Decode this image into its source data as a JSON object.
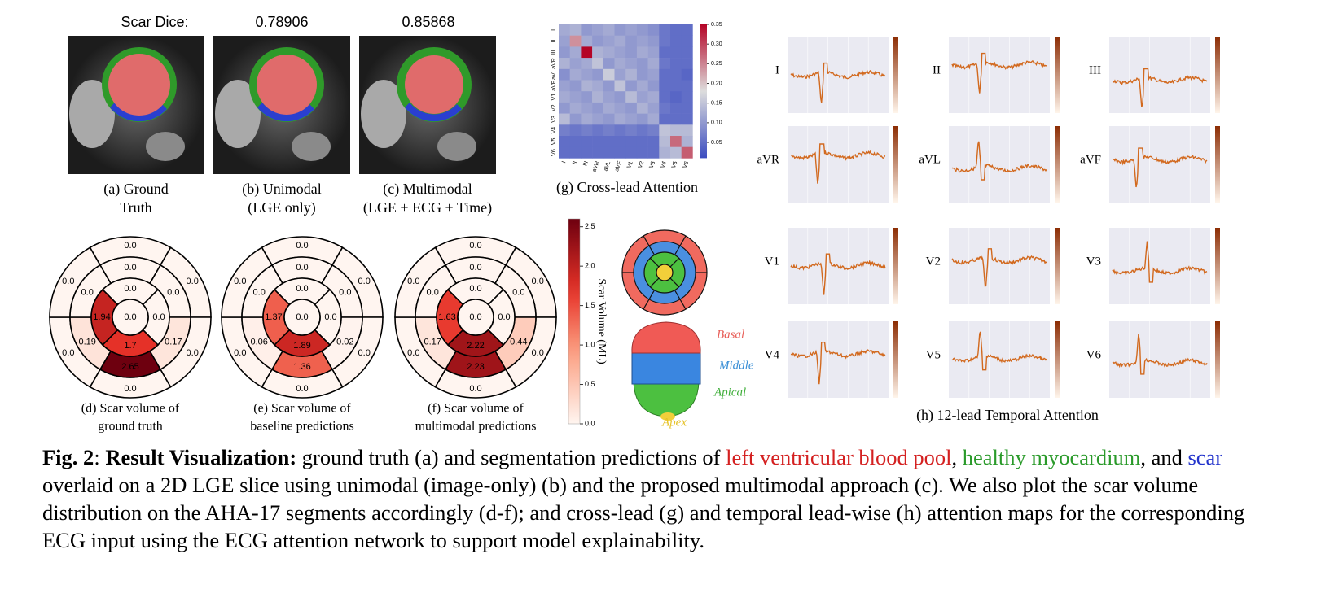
{
  "figure": {
    "scar_dice_label": "Scar Dice:",
    "dice": [
      "0.78906",
      "0.85868"
    ],
    "mri_captions": [
      [
        "(a) Ground",
        "Truth"
      ],
      [
        "(b) Unimodal",
        "(LGE only)"
      ],
      [
        "(c) Multimodal",
        "(LGE + ECG + Time)"
      ]
    ],
    "bullseyes": [
      {
        "caption": [
          "(d) Scar volume of",
          "ground truth"
        ],
        "basal": [
          "0.0",
          "0.0",
          "0.0",
          "0.0",
          "0.0",
          "0.0"
        ],
        "mid": [
          "0.0",
          "0.0",
          "0.17",
          "2.65",
          "0.19",
          "0.0"
        ],
        "apical": [
          "0.0",
          "0.0",
          "1.7",
          "1.94"
        ],
        "apex": "0.0"
      },
      {
        "caption": [
          "(e) Scar volume of",
          "baseline predictions"
        ],
        "basal": [
          "0.0",
          "0.0",
          "0.0",
          "0.0",
          "0.0",
          "0.0"
        ],
        "mid": [
          "0.0",
          "0.0",
          "0.02",
          "1.36",
          "0.06",
          "0.0"
        ],
        "apical": [
          "0.0",
          "0.0",
          "1.89",
          "1.37"
        ],
        "apex": "0.0"
      },
      {
        "caption": [
          "(f) Scar volume of",
          "multimodal predictions"
        ],
        "basal": [
          "0.0",
          "0.0",
          "0.0",
          "0.0",
          "0.0",
          "0.0"
        ],
        "mid": [
          "0.0",
          "0.0",
          "0.44",
          "2.23",
          "0.17",
          "0.0"
        ],
        "apical": [
          "0.0",
          "0.0",
          "2.22",
          "1.63"
        ],
        "apex": "0.0"
      }
    ],
    "colorbar": {
      "label": "Scar Volume (ML)",
      "lim": [
        0,
        2.6
      ],
      "ticks": [
        {
          "value": 0,
          "label": "0.0"
        },
        {
          "value": 0.5,
          "label": "0.5"
        },
        {
          "value": 1,
          "label": "1.0"
        },
        {
          "value": 1.5,
          "label": "1.5"
        },
        {
          "value": 2,
          "label": "2.0"
        },
        {
          "value": 2.5,
          "label": "2.5"
        }
      ]
    },
    "aha_labels": [
      {
        "text": "Basal",
        "color": "#e8605a"
      },
      {
        "text": "Middle",
        "color": "#3a8fd6"
      },
      {
        "text": "Apical",
        "color": "#3fae3a"
      },
      {
        "text": "Apex",
        "color": "#e6c228"
      }
    ],
    "attention": {
      "caption": "(g) Cross-lead Attention",
      "leads": [
        "I",
        "II",
        "III",
        "aVR",
        "aVL",
        "aVF",
        "V1",
        "V2",
        "V3",
        "V4",
        "V5",
        "V6"
      ],
      "lim": [
        0.01,
        0.35
      ],
      "ticks": [
        {
          "value": 0.05,
          "label": "0.05"
        },
        {
          "value": 0.1,
          "label": "0.10"
        },
        {
          "value": 0.15,
          "label": "0.15"
        },
        {
          "value": 0.2,
          "label": "0.20"
        },
        {
          "value": 0.25,
          "label": "0.25"
        },
        {
          "value": 0.3,
          "label": "0.30"
        },
        {
          "value": 0.35,
          "label": "0.35"
        }
      ],
      "values": [
        [
          0.12,
          0.13,
          0.1,
          0.11,
          0.12,
          0.1,
          0.11,
          0.1,
          0.09,
          0.06,
          0.05,
          0.05
        ],
        [
          0.11,
          0.24,
          0.12,
          0.1,
          0.11,
          0.12,
          0.1,
          0.11,
          0.1,
          0.06,
          0.05,
          0.05
        ],
        [
          0.1,
          0.12,
          0.35,
          0.13,
          0.12,
          0.11,
          0.1,
          0.12,
          0.11,
          0.05,
          0.05,
          0.05
        ],
        [
          0.13,
          0.11,
          0.12,
          0.15,
          0.1,
          0.12,
          0.11,
          0.1,
          0.12,
          0.06,
          0.05,
          0.05
        ],
        [
          0.09,
          0.12,
          0.11,
          0.1,
          0.16,
          0.11,
          0.13,
          0.1,
          0.11,
          0.05,
          0.05,
          0.04
        ],
        [
          0.11,
          0.1,
          0.13,
          0.12,
          0.1,
          0.15,
          0.1,
          0.12,
          0.1,
          0.05,
          0.05,
          0.05
        ],
        [
          0.12,
          0.11,
          0.1,
          0.13,
          0.11,
          0.1,
          0.14,
          0.11,
          0.12,
          0.05,
          0.04,
          0.05
        ],
        [
          0.1,
          0.12,
          0.11,
          0.1,
          0.12,
          0.11,
          0.1,
          0.13,
          0.11,
          0.06,
          0.05,
          0.05
        ],
        [
          0.14,
          0.1,
          0.12,
          0.11,
          0.1,
          0.12,
          0.11,
          0.1,
          0.12,
          0.05,
          0.05,
          0.05
        ],
        [
          0.07,
          0.06,
          0.07,
          0.06,
          0.07,
          0.06,
          0.07,
          0.06,
          0.07,
          0.15,
          0.14,
          0.14
        ],
        [
          0.05,
          0.05,
          0.05,
          0.05,
          0.05,
          0.05,
          0.05,
          0.05,
          0.05,
          0.14,
          0.27,
          0.13
        ],
        [
          0.05,
          0.05,
          0.05,
          0.05,
          0.05,
          0.05,
          0.05,
          0.05,
          0.05,
          0.13,
          0.14,
          0.28
        ]
      ]
    },
    "temporal": {
      "caption": "(h) 12-lead Temporal Attention",
      "leads": [
        "I",
        "II",
        "III",
        "aVR",
        "aVL",
        "aVF",
        "V1",
        "V2",
        "V3",
        "V4",
        "V5",
        "V6"
      ]
    },
    "caption": [
      {
        "text": "Fig. 2",
        "bold": true
      },
      {
        "text": ": "
      },
      {
        "text": "Result Visualization:",
        "bold": true
      },
      {
        "text": " ground truth (a) and segmentation predictions of "
      },
      {
        "text": "left ventricular blood pool",
        "color": "#d42020"
      },
      {
        "text": ", "
      },
      {
        "text": "healthy myocardium",
        "color": "#2a9a2a"
      },
      {
        "text": ", and "
      },
      {
        "text": "scar",
        "color": "#2233cc"
      },
      {
        "text": " overlaid on a 2D LGE slice using unimodal (image-only) (b) and the proposed multimodal approach (c). We also plot the scar volume distribution on the AHA-17 segments accordingly (d-f); and cross-lead (g) and temporal lead-wise (h) attention maps for the corresponding ECG input using the ECG attention network to support model explainability."
      }
    ]
  }
}
